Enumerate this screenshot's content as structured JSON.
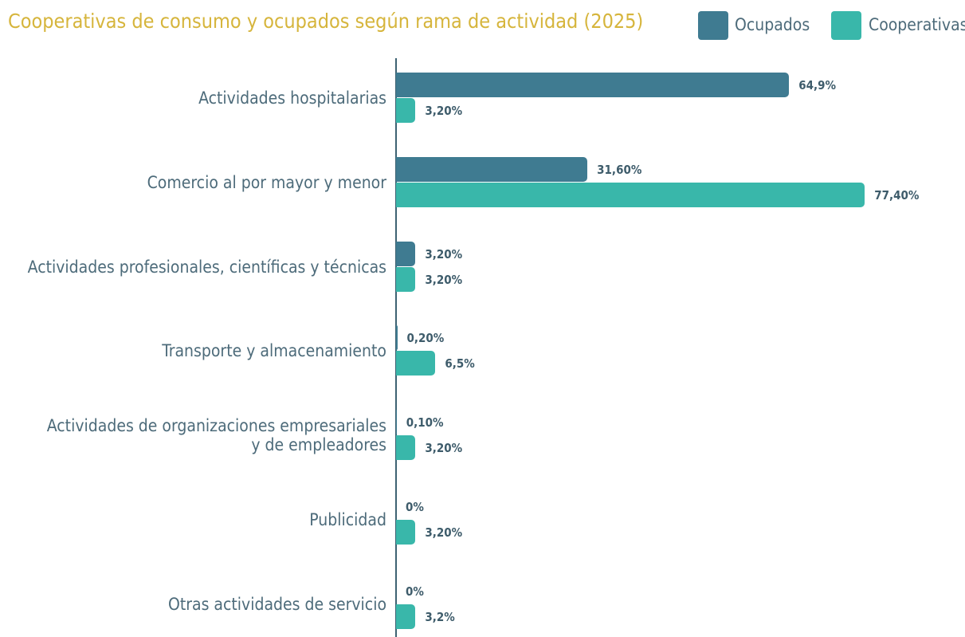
{
  "chart_data": {
    "type": "bar",
    "orientation": "horizontal",
    "title": "Cooperativas de consumo y ocupados según rama de actividad (2025)",
    "categories": [
      "Actividades hospitalarias",
      "Comercio al por mayor y menor",
      "Actividades profesionales, científicas y técnicas",
      "Transporte y almacenamiento",
      "Actividades de organizaciones empresariales\ny de empleadores",
      "Publicidad",
      "Otras actividades de servicio"
    ],
    "series": [
      {
        "name": "Ocupados",
        "color": "#3f7b91",
        "values": [
          64.9,
          31.6,
          3.2,
          0.2,
          0.1,
          0,
          0
        ],
        "value_labels": [
          "64,9%",
          "31,60%",
          "3,20%",
          "0,20%",
          "0,10%",
          "0%",
          "0%"
        ]
      },
      {
        "name": "Cooperativas",
        "color": "#39b7aa",
        "values": [
          3.2,
          77.4,
          3.2,
          6.5,
          3.2,
          3.2,
          3.2
        ],
        "value_labels": [
          "3,20%",
          "77,40%",
          "3,20%",
          "6,5%",
          "3,20%",
          "3,20%",
          "3,2%"
        ]
      }
    ],
    "xlim": [
      0,
      90
    ],
    "legend": "top-right"
  }
}
